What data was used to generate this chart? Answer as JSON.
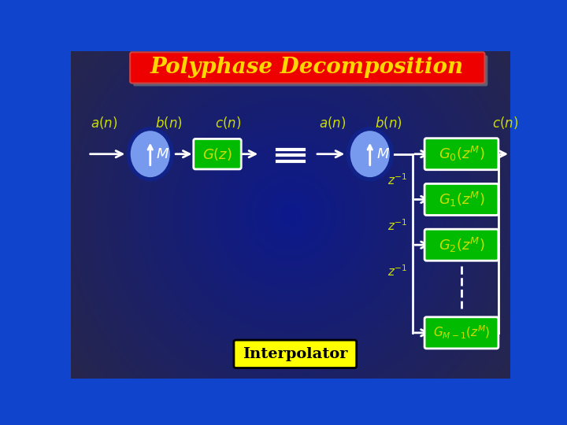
{
  "title": "Polyphase Decomposition",
  "title_bg": "#ee0000",
  "title_color": "#FFD700",
  "bg_color": "#1144cc",
  "bg_gradient_dark": "#000066",
  "green_box": "#00bb00",
  "yellow_text": "#ccdd00",
  "white": "#ffffff",
  "blue_ellipse_face": "#7799ee",
  "blue_ellipse_edge": "#112288",
  "yellow_label_bg": "#ffff00",
  "interpolator_text": "#000000",
  "shadow_color": "#888888"
}
